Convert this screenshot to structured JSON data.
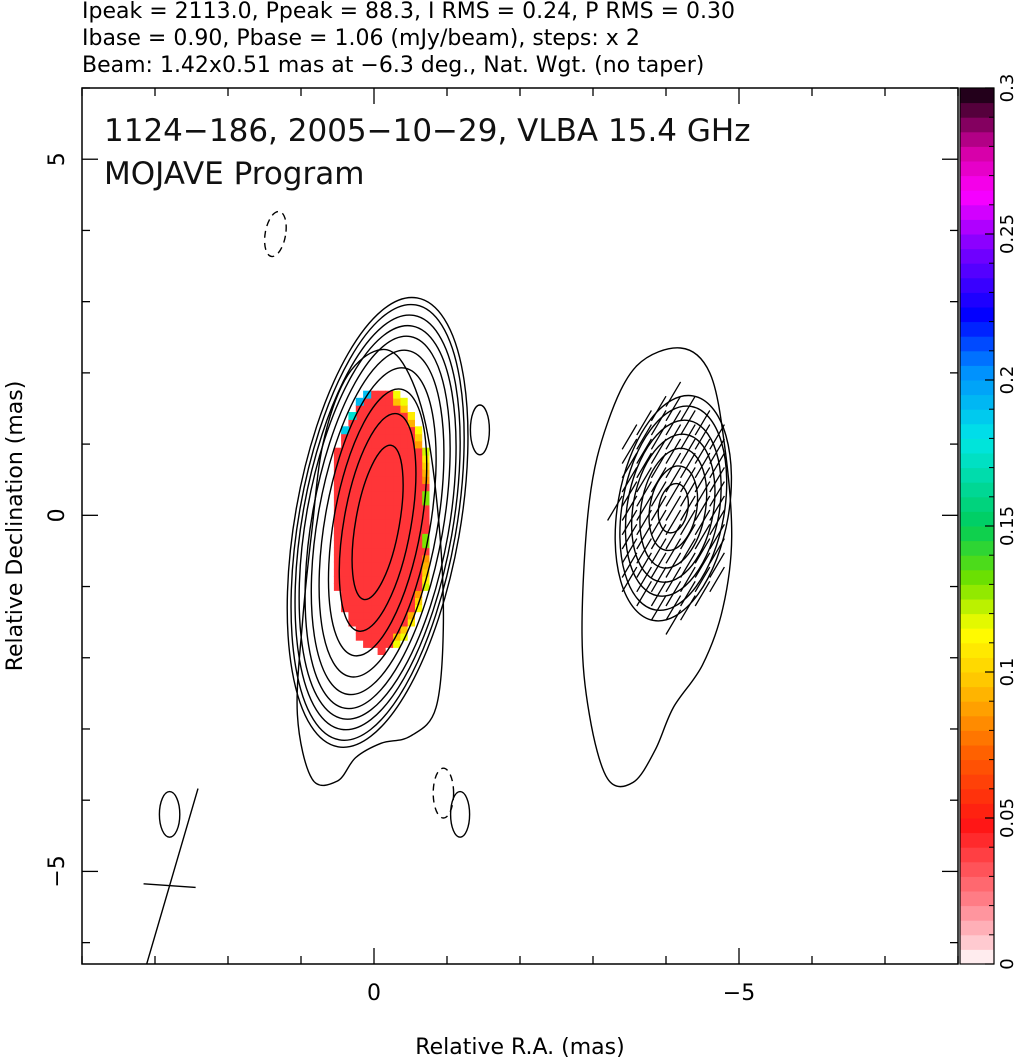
{
  "header": {
    "line1": "Ipeak = 2113.0, Ppeak = 88.3, I RMS = 0.24, P RMS = 0.30",
    "line2": "Ibase = 0.90, Pbase = 1.06 (mJy/beam), steps: x 2",
    "line3": "Beam: 1.42x0.51 mas at −6.3 deg., Nat. Wgt. (no taper)"
  },
  "plot_title": {
    "line1": "1124−186, 2005−10−29, VLBA 15.4 GHz",
    "line2": "MOJAVE Program"
  },
  "chart_data": {
    "type": "heatmap",
    "title": "1124−186, 2005−10−29, VLBA 15.4 GHz",
    "subtitle": "MOJAVE Program",
    "xlabel": "Relative R.A. (mas)",
    "ylabel": "Relative Declination (mas)",
    "xlim": [
      4,
      -8
    ],
    "ylim": [
      -6.3,
      6
    ],
    "x_ticks": [
      {
        "value": 0,
        "label": "0"
      },
      {
        "value": -5,
        "label": "−5"
      }
    ],
    "y_ticks": [
      {
        "value": 5,
        "label": "5"
      },
      {
        "value": 0,
        "label": "0"
      },
      {
        "value": -5,
        "label": "−5"
      }
    ],
    "x_minor_step": 1,
    "y_minor_step": 1,
    "colorbar": {
      "min": 0,
      "max": 0.3,
      "ticks": [
        {
          "value": 0,
          "label": "0"
        },
        {
          "value": 0.05,
          "label": "0.05"
        },
        {
          "value": 0.1,
          "label": "0.1"
        },
        {
          "value": 0.15,
          "label": "0.15"
        },
        {
          "value": 0.2,
          "label": "0.2"
        },
        {
          "value": 0.25,
          "label": "0.25"
        },
        {
          "value": 0.3,
          "label": "0.3"
        }
      ]
    },
    "total_intensity_contours": [
      {
        "component": "core",
        "center": [
          -0.05,
          -0.1
        ],
        "rx": [
          0.3,
          0.46,
          0.6,
          0.72,
          0.82,
          0.9,
          0.98,
          1.03,
          1.08,
          1.13
        ],
        "ry": [
          1.1,
          1.55,
          1.9,
          2.2,
          2.45,
          2.65,
          2.8,
          2.95,
          3.1,
          3.2
        ],
        "tilt_deg": 10
      },
      {
        "component": "core-outer",
        "polygon": [
          [
            0.85,
            -3.7
          ],
          [
            1.05,
            -2.8
          ],
          [
            0.98,
            -1.5
          ],
          [
            0.85,
            -0.2
          ],
          [
            0.7,
            1.0
          ],
          [
            0.4,
            1.9
          ],
          [
            0.0,
            2.3
          ],
          [
            -0.35,
            2.2
          ],
          [
            -0.68,
            1.4
          ],
          [
            -0.88,
            0.0
          ],
          [
            -0.95,
            -1.5
          ],
          [
            -0.85,
            -2.7
          ],
          [
            -0.5,
            -3.1
          ],
          [
            -0.1,
            -3.2
          ],
          [
            0.25,
            -3.4
          ],
          [
            0.5,
            -3.73
          ]
        ]
      },
      {
        "component": "west",
        "center": [
          -4.1,
          0.1
        ],
        "rx": [
          0.2,
          0.32,
          0.44,
          0.55,
          0.63,
          0.7,
          0.76
        ],
        "ry": [
          0.35,
          0.6,
          0.85,
          1.05,
          1.25,
          1.45,
          1.6
        ],
        "tilt_deg": 10
      },
      {
        "component": "west-outer",
        "polygon": [
          [
            -3.2,
            -3.7
          ],
          [
            -2.95,
            -2.8
          ],
          [
            -2.85,
            -1.6
          ],
          [
            -2.95,
            0.2
          ],
          [
            -3.2,
            1.3
          ],
          [
            -3.6,
            2.1
          ],
          [
            -4.2,
            2.35
          ],
          [
            -4.6,
            2.0
          ],
          [
            -4.8,
            1.0
          ],
          [
            -4.9,
            -0.3
          ],
          [
            -4.78,
            -1.3
          ],
          [
            -4.5,
            -2.1
          ],
          [
            -4.1,
            -2.7
          ],
          [
            -3.85,
            -3.3
          ],
          [
            -3.55,
            -3.75
          ]
        ]
      },
      {
        "component": "noise",
        "center": [
          -1.45,
          1.2
        ],
        "rx": [
          0.13
        ],
        "ry": [
          0.35
        ],
        "tilt_deg": 0
      },
      {
        "component": "noise",
        "center": [
          -1.18,
          -4.2
        ],
        "rx": [
          0.13
        ],
        "ry": [
          0.32
        ],
        "tilt_deg": 0
      },
      {
        "component": "noise",
        "center": [
          2.8,
          -4.2
        ],
        "rx": [
          0.14
        ],
        "ry": [
          0.32
        ],
        "tilt_deg": 0
      },
      {
        "component": "noise-negative",
        "center": [
          1.35,
          3.95
        ],
        "rx": [
          0.14
        ],
        "ry": [
          0.32
        ],
        "tilt_deg": 10
      },
      {
        "component": "noise-negative",
        "center": [
          -0.95,
          -3.9
        ],
        "rx": [
          0.14
        ],
        "ry": [
          0.35
        ],
        "tilt_deg": 0
      }
    ],
    "polarized_fraction_region": {
      "center": [
        -0.05,
        -0.1
      ],
      "rx": 0.7,
      "ry": 1.85,
      "typical_value": 0.04,
      "edge_value": 0.12
    },
    "evpa_ticks": {
      "center": [
        -4.1,
        0.1
      ],
      "rx": 0.8,
      "ry": 1.6,
      "angle_deg": 60,
      "length_mas": 0.4
    },
    "beam": {
      "center": [
        2.8,
        -5.2
      ],
      "major_mas": 1.42,
      "minor_mas": 0.51,
      "pa_deg": -6.3
    }
  }
}
